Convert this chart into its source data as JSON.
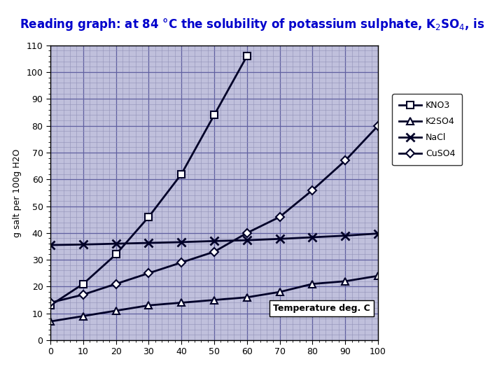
{
  "title": "Reading graph: at 84 °C the solubility of potassium sulphate, K₂SO₄, is",
  "xlabel_inside": "Temperature deg. C",
  "ylabel": "g salt per 100g H2O",
  "xlim": [
    0,
    100
  ],
  "ylim": [
    0,
    110
  ],
  "xticks": [
    0,
    10,
    20,
    30,
    40,
    50,
    60,
    70,
    80,
    90,
    100
  ],
  "yticks": [
    0,
    10,
    20,
    30,
    40,
    50,
    60,
    70,
    80,
    90,
    100,
    110
  ],
  "background_color": "#c0c0dc",
  "grid_minor_color": "#9090b8",
  "grid_major_color": "#6060a0",
  "title_color": "#0000cc",
  "line_color": "#000028",
  "KNO3": {
    "x": [
      0,
      10,
      20,
      30,
      40,
      50,
      60
    ],
    "y": [
      13,
      21,
      32,
      46,
      62,
      84,
      106
    ],
    "marker": "s",
    "label": "KNO3"
  },
  "K2SO4": {
    "x": [
      0,
      10,
      20,
      30,
      40,
      50,
      60,
      70,
      80,
      90,
      100
    ],
    "y": [
      7,
      9,
      11,
      13,
      14,
      15,
      16,
      18,
      21,
      22,
      24
    ],
    "marker": "^",
    "label": "K2SO4"
  },
  "NaCl": {
    "x": [
      0,
      10,
      20,
      30,
      40,
      50,
      60,
      70,
      80,
      90,
      100
    ],
    "y": [
      35.5,
      35.7,
      36,
      36.3,
      36.6,
      37.0,
      37.3,
      37.8,
      38.4,
      39.0,
      39.8
    ],
    "marker": "x",
    "label": "NaCl"
  },
  "CuSO4": {
    "x": [
      0,
      10,
      20,
      30,
      40,
      50,
      60,
      70,
      80,
      90,
      100
    ],
    "y": [
      14,
      17,
      21,
      25,
      29,
      33,
      40,
      46,
      56,
      67,
      80
    ],
    "marker": "D",
    "label": "CuSO4"
  },
  "legend_labels": [
    "KNO3",
    "K2SO4",
    "NaCl",
    "CuSO4"
  ],
  "figsize": [
    7.2,
    5.4
  ],
  "dpi": 100
}
